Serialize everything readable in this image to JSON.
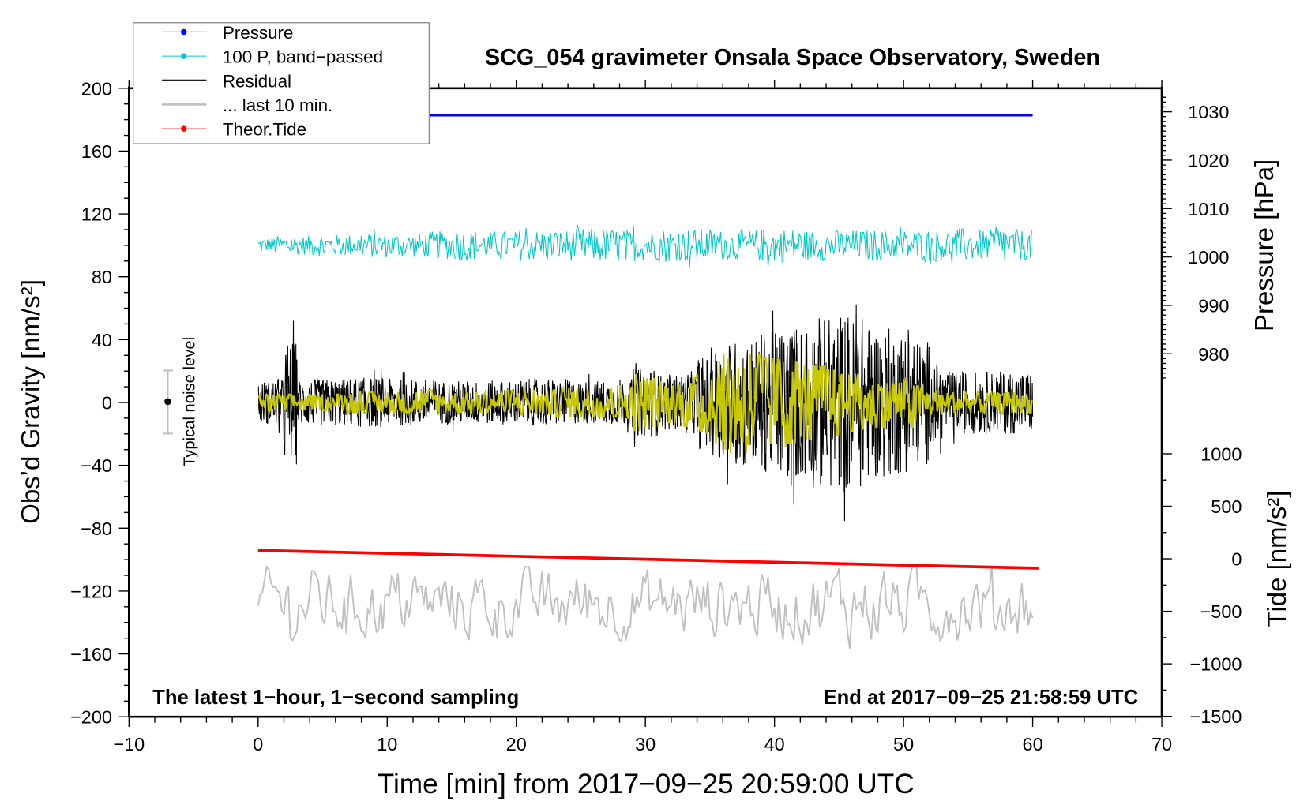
{
  "chart_data": {
    "type": "line",
    "title": "SCG_054 gravimeter Onsala Space Observatory, Sweden",
    "xlabel": "Time [min] from 2017−09−25 20:59:00 UTC",
    "ylabel": "Obs’d Gravity [nm/s²]",
    "ylabel_right_pressure": "Pressure [hPa]",
    "ylabel_right_tide": "Tide [nm/s²]",
    "xlim": [
      -10,
      70
    ],
    "ylim": [
      -200,
      200
    ],
    "pressure_axis": {
      "range": [
        975,
        1033
      ],
      "ticks": [
        1030,
        1020,
        1010,
        1000,
        990,
        980
      ]
    },
    "tide_axis": {
      "range": [
        -1500,
        1000
      ],
      "ticks": [
        1000,
        500,
        0,
        -500,
        -1000,
        -1500
      ]
    },
    "x_ticks": [
      -10,
      0,
      10,
      20,
      30,
      40,
      50,
      60,
      70
    ],
    "y_ticks": [
      200,
      160,
      120,
      80,
      40,
      0,
      -40,
      -80,
      -120,
      -160,
      -200
    ],
    "legend": {
      "placement": "top-left",
      "entries": [
        {
          "label": "Pressure",
          "color": "#0000ff",
          "marker": true
        },
        {
          "label": "100 P, band−passed",
          "color": "#00c8c8",
          "marker": true
        },
        {
          "label": "Residual",
          "color": "#000000",
          "marker": false
        },
        {
          "label": "... last 10 min.",
          "color": "#c0c0c0",
          "marker": false
        },
        {
          "label": "Theor.Tide",
          "color": "#ff0000",
          "marker": true
        }
      ]
    },
    "series": [
      {
        "name": "Pressure",
        "axis": "pressure_hPa",
        "color": "#0000ff",
        "x_range": [
          0,
          60
        ],
        "value": 1029.3
      },
      {
        "name": "100 P, band−passed",
        "axis": "gravity",
        "color": "#00c8c8",
        "x_range": [
          0,
          60
        ],
        "center": 100,
        "amplitude_per_min": [
          5,
          6,
          7,
          6,
          7,
          7,
          7,
          7,
          8,
          8,
          8,
          8,
          8,
          9,
          9,
          10,
          10,
          9,
          9,
          9,
          10,
          10,
          10,
          10,
          10,
          11,
          11,
          11,
          10,
          10,
          10,
          11,
          10,
          11,
          11,
          10,
          10,
          10,
          10,
          11,
          11,
          11,
          10,
          10,
          10,
          10,
          10,
          10,
          10,
          10,
          10,
          10,
          10,
          10,
          11,
          10,
          10,
          13,
          10,
          10,
          10
        ]
      },
      {
        "name": "Residual",
        "axis": "gravity",
        "color": "#000000",
        "x_range": [
          0,
          60
        ],
        "center": 0,
        "amplitude_per_min": [
          14,
          15,
          40,
          15,
          15,
          15,
          15,
          16,
          16,
          16,
          15,
          15,
          15,
          15,
          14,
          14,
          14,
          14,
          14,
          14,
          15,
          15,
          15,
          15,
          14,
          14,
          14,
          14,
          15,
          22,
          22,
          18,
          18,
          20,
          30,
          35,
          40,
          42,
          42,
          45,
          48,
          50,
          50,
          55,
          55,
          58,
          55,
          50,
          48,
          46,
          45,
          40,
          25,
          20,
          20,
          20,
          20,
          20,
          20,
          20,
          20
        ]
      },
      {
        "name": "",
        "axis": "gravity",
        "color": "#c8c800",
        "x_range": [
          0,
          60
        ],
        "center": 0,
        "amplitude_per_min": [
          4,
          4,
          4,
          4,
          4,
          4,
          4,
          5,
          5,
          5,
          5,
          5,
          6,
          6,
          5,
          5,
          5,
          5,
          5,
          6,
          6,
          6,
          6,
          7,
          7,
          7,
          7,
          7,
          8,
          14,
          12,
          10,
          10,
          12,
          15,
          20,
          25,
          25,
          24,
          22,
          22,
          20,
          18,
          18,
          16,
          14,
          14,
          12,
          12,
          12,
          12,
          8,
          6,
          5,
          5,
          5,
          5,
          5,
          5,
          5,
          5
        ]
      },
      {
        "name": "... last 10 min.",
        "axis": "gravity",
        "color": "#c0c0c0",
        "x_range": [
          0,
          60
        ],
        "center": -128,
        "amplitude_per_min": [
          18,
          20,
          18,
          15,
          16,
          16,
          17,
          17,
          17,
          18,
          18,
          16,
          16,
          16,
          18,
          18,
          18,
          17,
          17,
          17,
          18,
          18,
          18,
          18,
          18,
          18,
          18,
          18,
          18,
          17,
          17,
          17,
          17,
          18,
          18,
          18,
          18,
          17,
          17,
          18,
          18,
          18,
          20,
          20,
          20,
          22,
          20,
          20,
          18,
          18,
          18,
          18,
          18,
          18,
          18,
          18,
          18,
          18,
          18,
          18,
          18
        ]
      },
      {
        "name": "Theor.Tide",
        "axis": "tide",
        "color": "#ff0000",
        "x": [
          0,
          60.5
        ],
        "y": [
          80,
          -90
        ]
      }
    ],
    "noise_level": {
      "label": "Typical noise level",
      "center": 0,
      "range": [
        -20,
        20
      ]
    },
    "annotations": {
      "bottom_left": "The latest 1−hour, 1−second sampling",
      "bottom_right": "End at 2017−09−25 21:58:59 UTC"
    }
  }
}
